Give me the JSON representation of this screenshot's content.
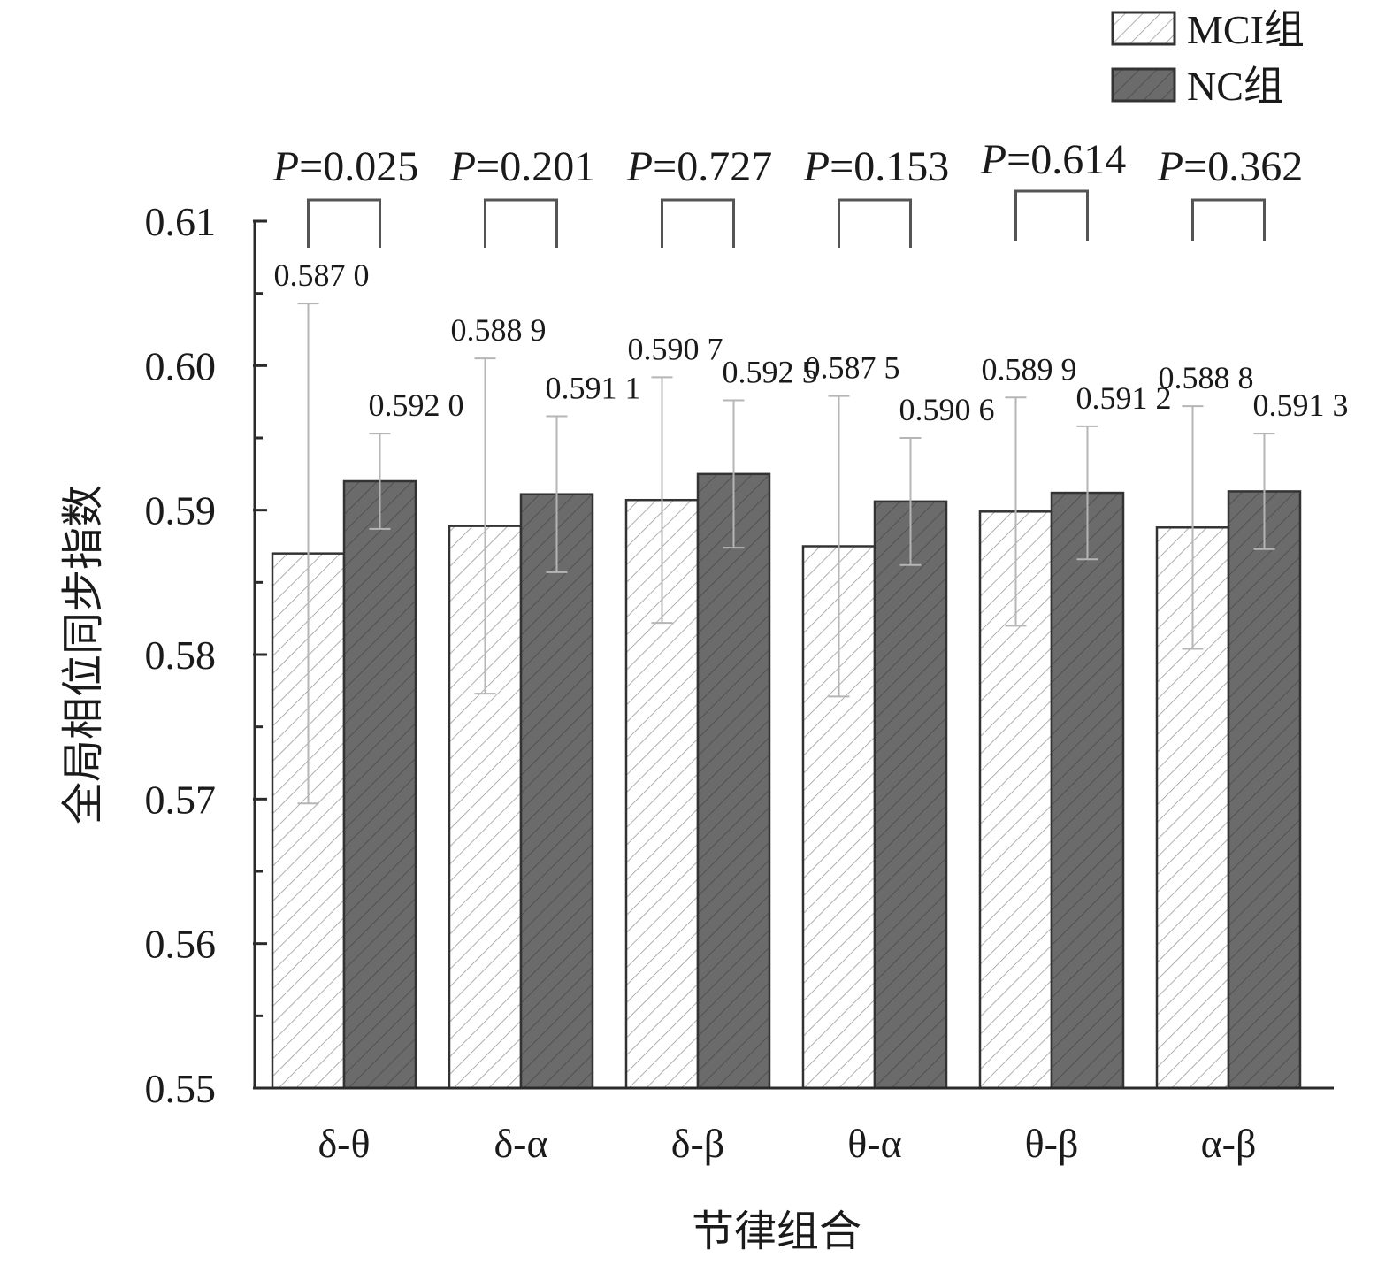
{
  "chart_data": {
    "type": "bar",
    "title": "",
    "xlabel": "节律组合",
    "ylabel": "全局相位同步指数",
    "categories": [
      "δ-θ",
      "δ-α",
      "δ-β",
      "θ-α",
      "θ-β",
      "α-β"
    ],
    "ylim": [
      0.55,
      0.61
    ],
    "yticks": [
      "0.55",
      "0.56",
      "0.57",
      "0.58",
      "0.59",
      "0.60",
      "0.61"
    ],
    "grid": false,
    "legend_position": "top-right",
    "series": [
      {
        "name": "MCI组",
        "values": [
          0.587,
          0.5889,
          0.5907,
          0.5875,
          0.5899,
          0.5888
        ],
        "labels": [
          "0.587 0",
          "0.588 9",
          "0.590 7",
          "0.587 5",
          "0.589 9",
          "0.588 8"
        ],
        "error": [
          0.0173,
          0.0116,
          0.0085,
          0.0104,
          0.0079,
          0.0084
        ],
        "fill": "hatched-white"
      },
      {
        "name": "NC组",
        "values": [
          0.592,
          0.5911,
          0.5925,
          0.5906,
          0.5912,
          0.5913
        ],
        "labels": [
          "0.592 0",
          "0.591 1",
          "0.592 5",
          "0.590 6",
          "0.591 2",
          "0.591 3"
        ],
        "error": [
          0.0033,
          0.0054,
          0.0051,
          0.0044,
          0.0046,
          0.004
        ],
        "fill": "hatched-dark"
      }
    ],
    "p_values": [
      "0.025",
      "0.201",
      "0.727",
      "0.153",
      "0.614",
      "0.362"
    ],
    "p_symbol": "P",
    "p_equals": "="
  },
  "colors": {
    "axis": "#2a2a2a",
    "mci_fill": "#ffffff",
    "mci_hatch": "#9a9a9a",
    "nc_fill": "#6b6b6b",
    "nc_hatch": "#4a4a4a",
    "bar_outline": "#333333",
    "error_bar": "#b5b5b5",
    "bracket": "#555555",
    "text": "#1a1a1a"
  }
}
